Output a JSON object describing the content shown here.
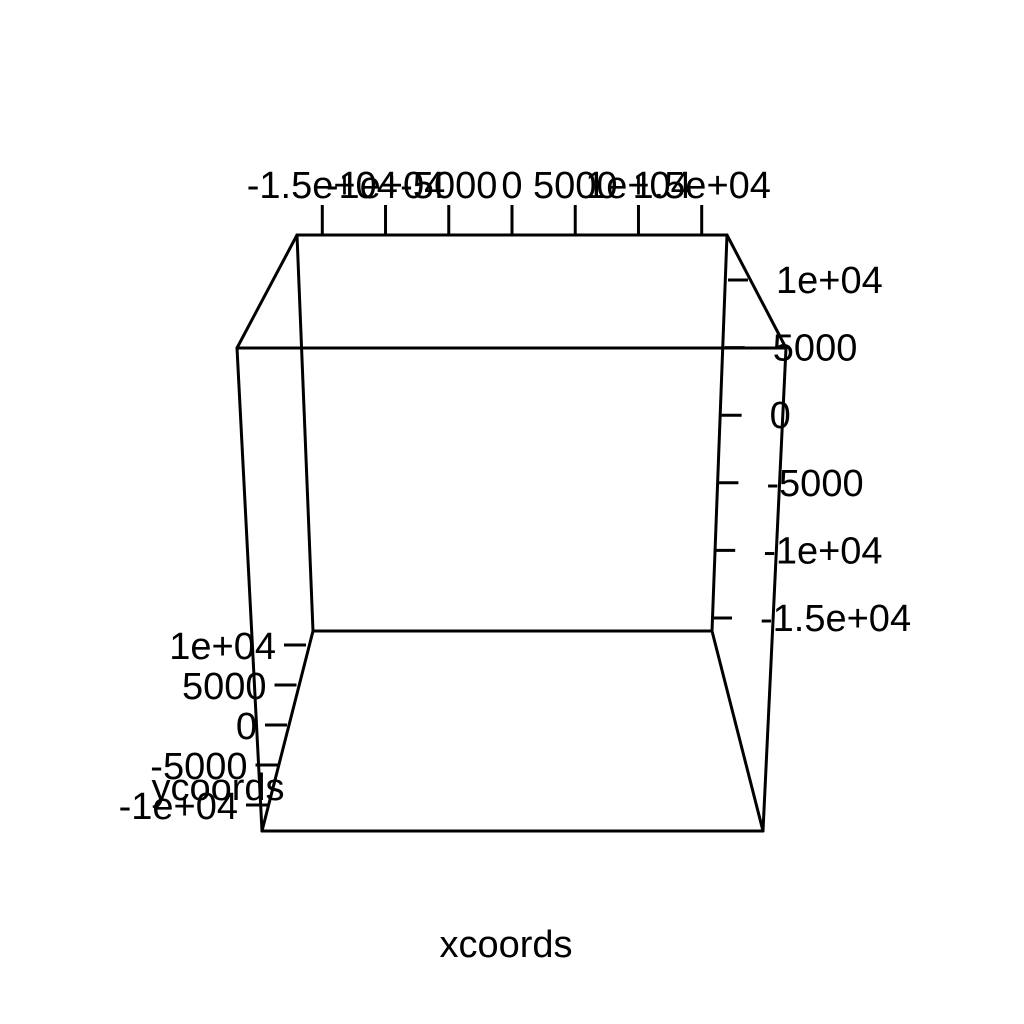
{
  "chart_data": {
    "type": "scatter",
    "title": "",
    "xlabel": "xcoords",
    "ylabel": "ycoords",
    "zlabel": "",
    "x_tick_labels": [
      "-1.5e+04",
      "-1e+04",
      "-5000",
      "0",
      "5000",
      "1e+04",
      "1.5e+04"
    ],
    "y_tick_labels": [
      "-1e+04",
      "-5000",
      "0",
      "5000",
      "1e+04"
    ],
    "z_tick_labels": [
      "1e+04",
      "5000",
      "0",
      "-5000",
      "-1e+04",
      "-1.5e+04"
    ],
    "x_ticks": [
      -15000,
      -10000,
      -5000,
      0,
      5000,
      10000,
      15000
    ],
    "y_ticks": [
      -10000,
      -5000,
      0,
      5000,
      10000
    ],
    "z_ticks": [
      10000,
      5000,
      0,
      -5000,
      -10000,
      -15000
    ],
    "xlim": [
      -17000,
      17000
    ],
    "ylim": [
      -11000,
      11000
    ],
    "zlim": [
      -17000,
      12000
    ],
    "points": []
  }
}
